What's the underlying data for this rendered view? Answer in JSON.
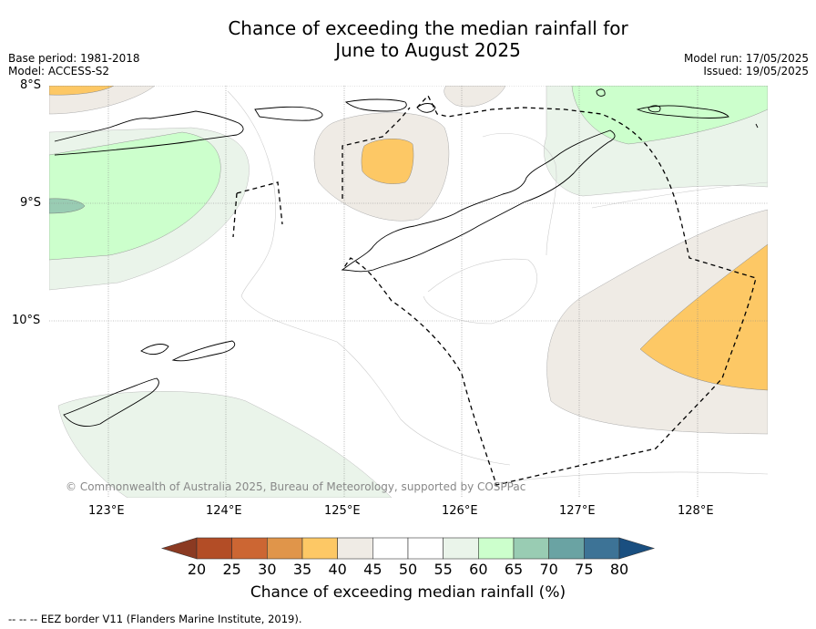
{
  "title": "Chance of exceeding the median rainfall for\nJune to August 2025",
  "meta_left": [
    "Base period: 1981-2018",
    "Model: ACCESS-S2"
  ],
  "meta_right": [
    "Model run: 17/05/2025",
    "Issued: 19/05/2025"
  ],
  "lat_labels": [
    "8°S",
    "9°S",
    "10°S"
  ],
  "lon_labels": [
    "123°E",
    "124°E",
    "125°E",
    "126°E",
    "127°E",
    "128°E"
  ],
  "copyright": "© Commonwealth of Australia 2025, Bureau of Meteorology, supported by COSPPac",
  "colorbar": {
    "ticks": [
      "20",
      "25",
      "30",
      "35",
      "40",
      "45",
      "50",
      "55",
      "60",
      "65",
      "70",
      "75",
      "80"
    ],
    "colors": [
      "#b34d26",
      "#cc6633",
      "#e0954a",
      "#fdc865",
      "#efebe5",
      "#ffffff",
      "#ffffff",
      "#eaf4ea",
      "#ccffcc",
      "#99ccb3",
      "#6aa3a3",
      "#3d7396"
    ],
    "under_color": "#8b3a22",
    "over_color": "#1a4f80",
    "label": "Chance of exceeding median rainfall (%)"
  },
  "footer": "--  --  -- EEZ border V11 (Flanders Marine Institute, 2019)."
}
